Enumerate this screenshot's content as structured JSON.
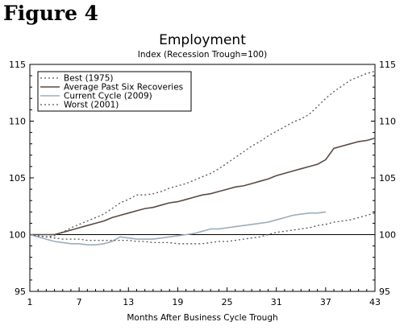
{
  "figure_label": "Figure 4",
  "chart_data": {
    "type": "line",
    "title": "Employment",
    "subtitle": "Index (Recession Trough=100)",
    "xlabel": "Months After Business Cycle Trough",
    "ylabel": "",
    "xlim": [
      1,
      43
    ],
    "ylim": [
      95,
      115
    ],
    "x_ticks": [
      "1",
      "7",
      "13",
      "19",
      "25",
      "31",
      "37",
      "43"
    ],
    "y_ticks": [
      "95",
      "100",
      "105",
      "110",
      "115"
    ],
    "baseline": 100,
    "legend_position": "top-left",
    "series": [
      {
        "name": "Best (1975)",
        "style": "dotted",
        "color": "#555555",
        "x": [
          1,
          2,
          3,
          4,
          5,
          6,
          7,
          8,
          9,
          10,
          11,
          12,
          13,
          14,
          15,
          16,
          17,
          18,
          19,
          20,
          21,
          22,
          23,
          24,
          25,
          26,
          27,
          28,
          29,
          30,
          31,
          32,
          33,
          34,
          35,
          36,
          37,
          38,
          39,
          40,
          41,
          42,
          43
        ],
        "values": [
          100,
          99.9,
          99.8,
          99.9,
          100.2,
          100.6,
          100.9,
          101.2,
          101.5,
          101.8,
          102.3,
          102.8,
          103.1,
          103.5,
          103.5,
          103.6,
          103.8,
          104.1,
          104.3,
          104.5,
          104.8,
          105.1,
          105.4,
          105.8,
          106.3,
          106.8,
          107.3,
          107.8,
          108.2,
          108.7,
          109.1,
          109.5,
          109.9,
          110.2,
          110.6,
          111.3,
          112.0,
          112.6,
          113.1,
          113.6,
          113.9,
          114.2,
          114.4
        ]
      },
      {
        "name": "Average Past Six Recoveries",
        "style": "solid",
        "color": "#5a4a42",
        "x": [
          1,
          2,
          3,
          4,
          5,
          6,
          7,
          8,
          9,
          10,
          11,
          12,
          13,
          14,
          15,
          16,
          17,
          18,
          19,
          20,
          21,
          22,
          23,
          24,
          25,
          26,
          27,
          28,
          29,
          30,
          31,
          32,
          33,
          34,
          35,
          36,
          37,
          38,
          39,
          40,
          41,
          42,
          43
        ],
        "values": [
          100,
          100,
          100,
          100,
          100.2,
          100.4,
          100.6,
          100.8,
          101.0,
          101.2,
          101.5,
          101.7,
          101.9,
          102.1,
          102.3,
          102.4,
          102.6,
          102.8,
          102.9,
          103.1,
          103.3,
          103.5,
          103.6,
          103.8,
          104.0,
          104.2,
          104.3,
          104.5,
          104.7,
          104.9,
          105.2,
          105.4,
          105.6,
          105.8,
          106.0,
          106.2,
          106.6,
          107.6,
          107.8,
          108.0,
          108.2,
          108.3,
          108.5
        ]
      },
      {
        "name": "Current Cycle (2009)",
        "style": "solid",
        "color": "#9aadbd",
        "x": [
          1,
          2,
          3,
          4,
          5,
          6,
          7,
          8,
          9,
          10,
          11,
          12,
          13,
          14,
          15,
          16,
          17,
          18,
          19,
          20,
          21,
          22,
          23,
          24,
          25,
          26,
          27,
          28,
          29,
          30,
          31,
          32,
          33,
          34,
          35,
          36,
          37
        ],
        "values": [
          100,
          99.8,
          99.6,
          99.4,
          99.3,
          99.2,
          99.2,
          99.1,
          99.1,
          99.2,
          99.4,
          99.8,
          99.7,
          99.6,
          99.6,
          99.6,
          99.7,
          99.8,
          99.9,
          100.0,
          100.1,
          100.3,
          100.5,
          100.5,
          100.6,
          100.7,
          100.8,
          100.9,
          101.0,
          101.1,
          101.3,
          101.5,
          101.7,
          101.8,
          101.9,
          101.9,
          102.0
        ]
      },
      {
        "name": "Worst (2001)",
        "style": "dotted",
        "color": "#555555",
        "x": [
          1,
          2,
          3,
          4,
          5,
          6,
          7,
          8,
          9,
          10,
          11,
          12,
          13,
          14,
          15,
          16,
          17,
          18,
          19,
          20,
          21,
          22,
          23,
          24,
          25,
          26,
          27,
          28,
          29,
          30,
          31,
          32,
          33,
          34,
          35,
          36,
          37,
          38,
          39,
          40,
          41,
          42,
          43
        ],
        "values": [
          100,
          99.9,
          99.8,
          99.7,
          99.6,
          99.6,
          99.6,
          99.5,
          99.5,
          99.5,
          99.5,
          99.5,
          99.5,
          99.4,
          99.4,
          99.3,
          99.3,
          99.3,
          99.2,
          99.2,
          99.2,
          99.2,
          99.3,
          99.4,
          99.4,
          99.5,
          99.6,
          99.7,
          99.8,
          100.0,
          100.2,
          100.3,
          100.4,
          100.5,
          100.6,
          100.8,
          100.9,
          101.1,
          101.2,
          101.3,
          101.5,
          101.7,
          101.9
        ]
      }
    ]
  }
}
